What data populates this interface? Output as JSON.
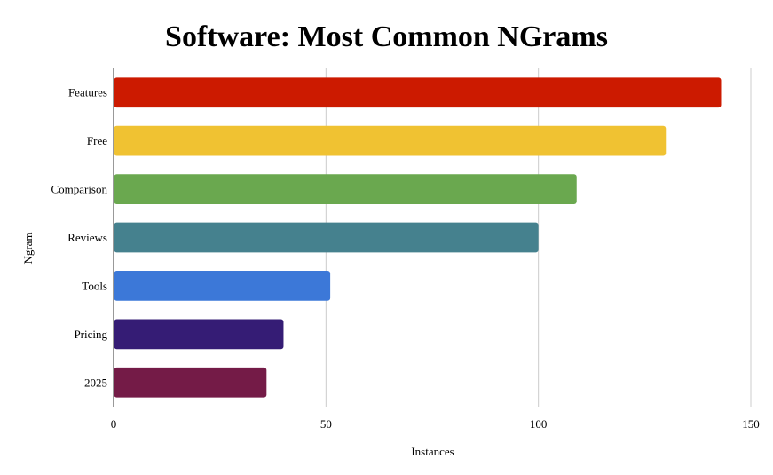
{
  "chart_data": {
    "type": "bar",
    "orientation": "horizontal",
    "title": "Software: Most Common NGrams",
    "xlabel": "Instances",
    "ylabel": "Ngram",
    "categories": [
      "Features",
      "Free",
      "Comparison",
      "Reviews",
      "Tools",
      "Pricing",
      "2025"
    ],
    "values": [
      143,
      130,
      109,
      100,
      51,
      40,
      36
    ],
    "colors": [
      "#cc1a00",
      "#f0c232",
      "#6aa84f",
      "#45818e",
      "#3c78d8",
      "#351c75",
      "#741b47"
    ],
    "xlim": [
      0,
      150
    ],
    "xticks": [
      0,
      50,
      100,
      150
    ],
    "grid": true,
    "legend": "none"
  }
}
